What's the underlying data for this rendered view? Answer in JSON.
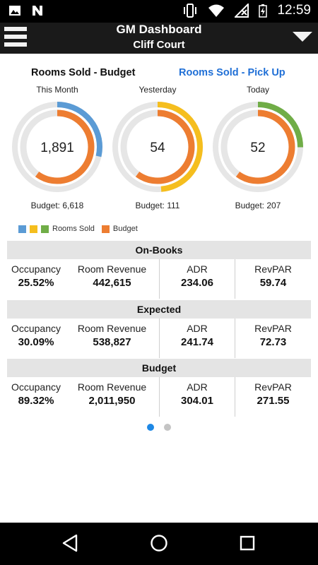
{
  "status_bar": {
    "time": "12:59",
    "left_icons": [
      "image-icon",
      "n-notification-icon"
    ],
    "right_icons": [
      "vibrate-icon",
      "wifi-icon",
      "signal-icon",
      "battery-charging-icon"
    ]
  },
  "app_bar": {
    "title": "GM Dashboard",
    "subtitle": "Cliff Court"
  },
  "tabs": {
    "budget": "Rooms Sold - Budget",
    "pickup": "Rooms Sold - Pick Up"
  },
  "gauges": [
    {
      "label": "This Month",
      "value": "1,891",
      "budget_text": "Budget: 6,618",
      "sold": 1891,
      "budget": 6618,
      "budget_fraction": 0.6,
      "color": "#5b9bd5"
    },
    {
      "label": "Yesterday",
      "value": "54",
      "budget_text": "Budget: 111",
      "sold": 54,
      "budget": 111,
      "budget_fraction": 0.6,
      "color": "#f5be1e"
    },
    {
      "label": "Today",
      "value": "52",
      "budget_text": "Budget: 207",
      "sold": 52,
      "budget": 207,
      "budget_fraction": 0.6,
      "color": "#70ad47"
    }
  ],
  "legend": {
    "rooms_sold": "Rooms Sold",
    "budget": "Budget",
    "rooms_sold_colors": [
      "#5b9bd5",
      "#f5be1e",
      "#70ad47"
    ],
    "budget_color": "#ed7d31"
  },
  "sections": [
    {
      "title": "On-Books",
      "occupancy_label": "Occupancy",
      "occupancy": "25.52%",
      "revenue_label": "Room Revenue",
      "revenue": "442,615",
      "adr_label": "ADR",
      "adr": "234.06",
      "revpar_label": "RevPAR",
      "revpar": "59.74"
    },
    {
      "title": "Expected",
      "occupancy_label": "Occupancy",
      "occupancy": "30.09%",
      "revenue_label": "Room Revenue",
      "revenue": "538,827",
      "adr_label": "ADR",
      "adr": "241.74",
      "revpar_label": "RevPAR",
      "revpar": "72.73"
    },
    {
      "title": "Budget",
      "occupancy_label": "Occupancy",
      "occupancy": "89.32%",
      "revenue_label": "Room Revenue",
      "revenue": "2,011,950",
      "adr_label": "ADR",
      "adr": "304.01",
      "revpar_label": "RevPAR",
      "revpar": "271.55"
    }
  ],
  "pager": {
    "pages": 2,
    "active": 0,
    "active_color": "#1e88e5",
    "inactive_color": "#c4c4c4"
  },
  "colors": {
    "track": "#e6e6e6",
    "budget_ring": "#ed7d31",
    "accent": "#1f6fd6"
  },
  "nav_bar": {
    "icons": [
      "back-icon",
      "home-icon",
      "recents-icon"
    ]
  }
}
